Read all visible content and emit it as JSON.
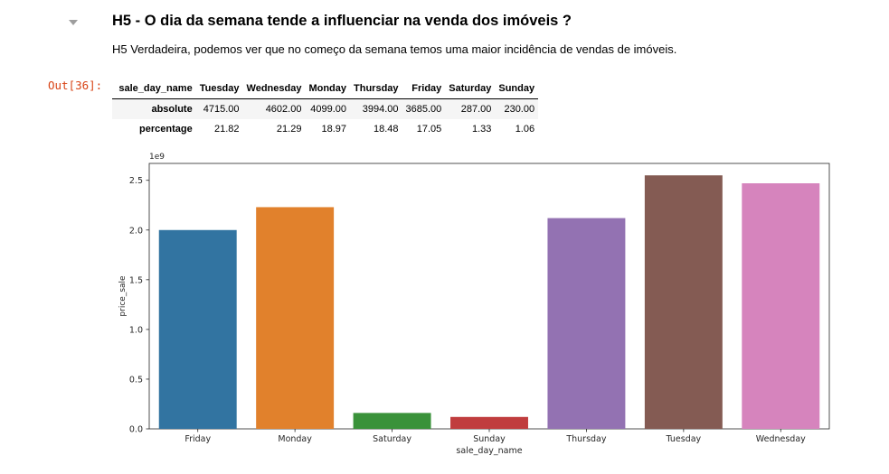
{
  "cell": {
    "heading": "H5 - O dia da semana tende a influenciar na venda dos imóveis ?",
    "description": "H5 Verdadeira, podemos ver que no começo da semana temos uma maior incidência de vendas de imóveis.",
    "out_prompt": "Out[36]:"
  },
  "table": {
    "index_header": "sale_day_name",
    "columns": [
      "Tuesday",
      "Wednesday",
      "Monday",
      "Thursday",
      "Friday",
      "Saturday",
      "Sunday"
    ],
    "rows": [
      {
        "label": "absolute",
        "values": [
          "4715.00",
          "4602.00",
          "4099.00",
          "3994.00",
          "3685.00",
          "287.00",
          "230.00"
        ]
      },
      {
        "label": "percentage",
        "values": [
          "21.82",
          "21.29",
          "18.97",
          "18.48",
          "17.05",
          "1.33",
          "1.06"
        ]
      }
    ]
  },
  "chart_data": {
    "type": "bar",
    "categories": [
      "Friday",
      "Monday",
      "Saturday",
      "Sunday",
      "Thursday",
      "Tuesday",
      "Wednesday"
    ],
    "values": [
      2.0,
      2.23,
      0.16,
      0.12,
      2.12,
      2.55,
      2.47
    ],
    "colors": [
      "#3274a1",
      "#e1812c",
      "#3a923a",
      "#c03d3e",
      "#9372b2",
      "#845b53",
      "#d684bd"
    ],
    "xlabel": "sale_day_name",
    "ylabel": "price_sale",
    "scale_label": "1e9",
    "ylim": [
      0,
      2.67
    ],
    "yticks": [
      "0.0",
      "0.5",
      "1.0",
      "1.5",
      "2.0",
      "2.5"
    ],
    "grid": false
  }
}
